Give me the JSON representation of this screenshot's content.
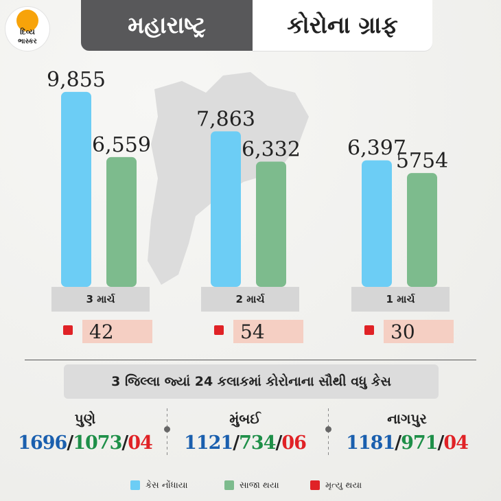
{
  "brand": {
    "line1": "દિવ્ય",
    "line2": "ભાસ્કર"
  },
  "header": {
    "left": "મહારાષ્ટ્ર",
    "right": "કોરોના ગ્રાફ"
  },
  "colors": {
    "cases": "#6ccdf5",
    "recovered": "#7dbb8d",
    "deaths": "#e02226",
    "header_dark": "#58585a"
  },
  "chart_data": {
    "type": "bar",
    "categories": [
      "3 માર્ચ",
      "2 માર્ચ",
      "1 માર્ચ"
    ],
    "series": [
      {
        "name": "કેસ નોંધાયા",
        "values": [
          9855,
          7863,
          6397
        ],
        "labels": [
          "9,855",
          "7,863",
          "6,397"
        ]
      },
      {
        "name": "સાજા થયા",
        "values": [
          6559,
          6332,
          5754
        ],
        "labels": [
          "6,559",
          "6,332",
          "5754"
        ]
      }
    ],
    "deaths": [
      "42",
      "54",
      "30"
    ],
    "ylim": [
      0,
      14500
    ]
  },
  "districts": {
    "title": "3 જિલ્લા જ્યાં 24 કલાકમાં કોરોનાના સૌથી વધુ કેસ",
    "items": [
      {
        "name": "પુણે",
        "cases": "1696",
        "recovered": "1073",
        "deaths": "04"
      },
      {
        "name": "મુંબઈ",
        "cases": "1121",
        "recovered": "734",
        "deaths": "06"
      },
      {
        "name": "નાગપુર",
        "cases": "1181",
        "recovered": "971",
        "deaths": "04"
      }
    ]
  },
  "legend": {
    "cases": "કેસ નોંધાયા",
    "recovered": "સાજા થયા",
    "deaths": "મૃત્યુ થયા"
  }
}
